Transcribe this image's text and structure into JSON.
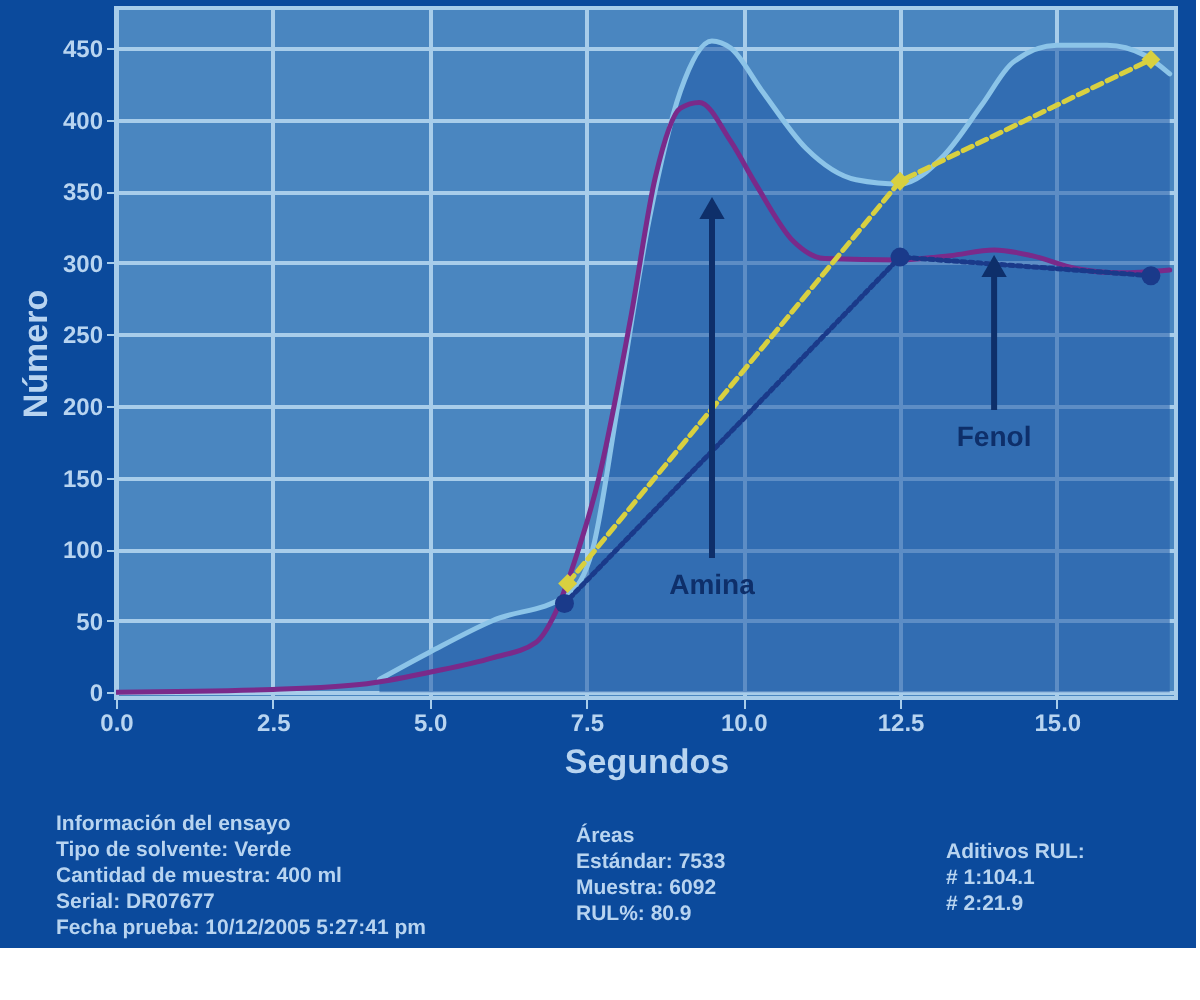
{
  "chart_data": {
    "type": "line",
    "xlabel": "Segundos",
    "ylabel": "Número",
    "xlim": [
      0,
      16.9
    ],
    "ylim": [
      -4,
      478
    ],
    "xticks": [
      {
        "value": 0,
        "label": "0.0"
      },
      {
        "value": 2.5,
        "label": "2.5"
      },
      {
        "value": 5,
        "label": "5.0"
      },
      {
        "value": 7.5,
        "label": "7.5"
      },
      {
        "value": 10,
        "label": "10.0"
      },
      {
        "value": 12.5,
        "label": "12.5"
      },
      {
        "value": 15,
        "label": "15.0"
      }
    ],
    "yticks": [
      0,
      50,
      100,
      150,
      200,
      250,
      300,
      350,
      400,
      450
    ],
    "grid": true,
    "series": [
      {
        "type": "area",
        "color": "#8cc4e8",
        "x": [
          4.2,
          5.0,
          6.0,
          7.2,
          7.6,
          8.0,
          8.5,
          9.0,
          9.5,
          9.8,
          10.3,
          11.0,
          11.8,
          12.5,
          13.2,
          13.8,
          14.3,
          15.0,
          15.8,
          16.4,
          16.8
        ],
        "values": [
          9,
          28,
          50,
          68,
          100,
          200,
          330,
          420,
          455,
          450,
          420,
          380,
          358,
          355,
          375,
          410,
          440,
          452,
          452,
          445,
          432
        ]
      },
      {
        "color": "#7a2a8a",
        "x": [
          0,
          2.5,
          4.0,
          5.0,
          6.0,
          6.7,
          7.0,
          7.3,
          7.7,
          8.2,
          8.6,
          9.0,
          9.3,
          9.8,
          10.2,
          10.8,
          11.3,
          12.5,
          13.3,
          14.0,
          14.6,
          15.3,
          16.0,
          16.8
        ],
        "values": [
          0,
          2,
          6,
          14,
          24,
          35,
          55,
          90,
          150,
          260,
          360,
          408,
          412,
          385,
          355,
          315,
          303,
          302,
          305,
          309,
          305,
          296,
          293,
          295
        ]
      },
      {
        "color": "#d8d040",
        "line_style": "dashed",
        "marker": "diamond",
        "x": [
          7.2,
          12.5,
          16.5
        ],
        "values": [
          76,
          357,
          442
        ]
      },
      {
        "color": "#1a3a8a",
        "line_style": "dotted",
        "marker": "circle",
        "x": [
          7.15,
          12.5,
          16.5
        ],
        "values": [
          62,
          304,
          291
        ]
      }
    ],
    "annotations": [
      "Amina",
      {
        "text": "Fenol",
        "x": 14.0,
        "y": 309
      },
      "Información del ensayo\nTipo de solvente: Verde\nCantidad de muestra: 400 ml\nSerial: DR07677\nFecha prueba: 10/12/2005 5:27:41 pm",
      "Áreas\nEstándar: 7533\nMuestra: 6092\nRUL%: 80.9",
      "Aditivos RUL:\n# 1:104.1\n# 2:21.9"
    ]
  }
}
